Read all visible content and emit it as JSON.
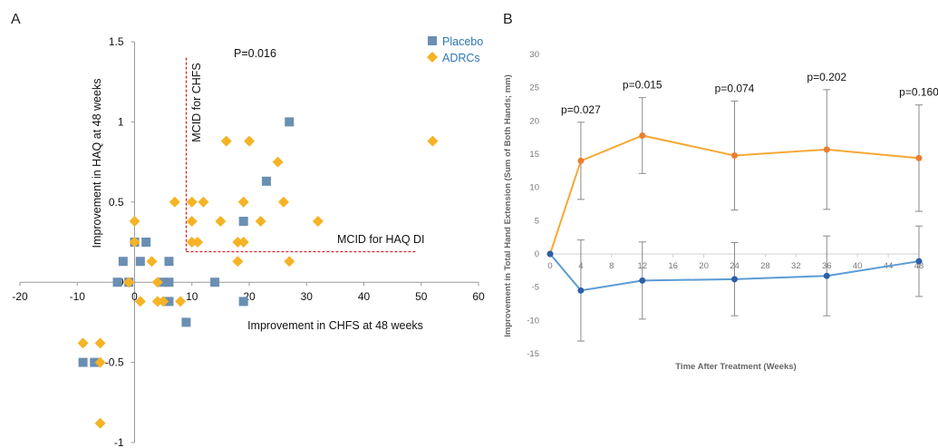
{
  "panels": {
    "a": "A",
    "b": "B"
  },
  "colors": {
    "placebo": "#6a8fb3",
    "adrc": "#f5b325",
    "orange_line": "#f4a935",
    "orange_marker": "#ed7d31",
    "blue_line": "#5b9bd5",
    "blue_marker": "#2e5fa8",
    "mcid": "#cc0000"
  },
  "chart_data": [
    {
      "type": "scatter",
      "title": "",
      "xlabel": "Improvement in CHFS at 48 weeks",
      "ylabel": "Improvement in HAQ at 48 weeks",
      "xlim": [
        -20,
        60
      ],
      "ylim": [
        -1,
        1.5
      ],
      "x_ticks": [
        "-20",
        "-10",
        "0",
        "10",
        "20",
        "30",
        "40",
        "50",
        "60"
      ],
      "y_ticks": [
        "1.5",
        "1",
        "0.5",
        "0",
        "-0.5",
        "-1"
      ],
      "annotation": "P=0.016",
      "mcid_chfs_label": "MCID for CHFS",
      "mcid_haq_label": "MCID for HAQ DI",
      "mcid_chfs_value": 9,
      "mcid_haq_value": 0.19,
      "series": [
        {
          "name": "Placebo",
          "marker": "square",
          "points": [
            [
              27,
              1
            ],
            [
              23,
              0.63
            ],
            [
              19,
              0.38
            ],
            [
              0,
              0.25
            ],
            [
              2,
              0.25
            ],
            [
              -2,
              0.13
            ],
            [
              1,
              0.13
            ],
            [
              6,
              0.13
            ],
            [
              -3,
              0
            ],
            [
              -1,
              0
            ],
            [
              5,
              0
            ],
            [
              6,
              0
            ],
            [
              14,
              0
            ],
            [
              6,
              -0.12
            ],
            [
              9,
              -0.25
            ],
            [
              19,
              -0.12
            ],
            [
              -9,
              -0.5
            ],
            [
              -7,
              -0.5
            ]
          ]
        },
        {
          "name": "ADRCs",
          "marker": "diamond",
          "points": [
            [
              52,
              0.88
            ],
            [
              16,
              0.88
            ],
            [
              20,
              0.88
            ],
            [
              25,
              0.75
            ],
            [
              0,
              0.38
            ],
            [
              10,
              0.38
            ],
            [
              15,
              0.38
            ],
            [
              22,
              0.38
            ],
            [
              32,
              0.38
            ],
            [
              7,
              0.5
            ],
            [
              10,
              0.5
            ],
            [
              12,
              0.5
            ],
            [
              19,
              0.5
            ],
            [
              26,
              0.5
            ],
            [
              0,
              0.25
            ],
            [
              10,
              0.25
            ],
            [
              11,
              0.25
            ],
            [
              18,
              0.25
            ],
            [
              19,
              0.25
            ],
            [
              3,
              0.13
            ],
            [
              18,
              0.13
            ],
            [
              27,
              0.13
            ],
            [
              4,
              0
            ],
            [
              -1,
              0
            ],
            [
              1,
              -0.12
            ],
            [
              4,
              -0.12
            ],
            [
              5,
              -0.12
            ],
            [
              8,
              -0.12
            ],
            [
              -9,
              -0.38
            ],
            [
              -6,
              -0.38
            ],
            [
              -6,
              -0.5
            ],
            [
              -6,
              -0.88
            ]
          ]
        }
      ]
    },
    {
      "type": "line",
      "title": "",
      "xlabel": "Time After Treatment (Weeks)",
      "ylabel": "Improvement in Total Hand Extension (Sum of Both Hands; mm)",
      "xlim": [
        0,
        48
      ],
      "ylim": [
        -15,
        30
      ],
      "x_ticks": [
        "0",
        "4",
        "8",
        "12",
        "16",
        "20",
        "24",
        "28",
        "32",
        "36",
        "40",
        "44",
        "48"
      ],
      "y_ticks": [
        "30",
        "25",
        "20",
        "15",
        "10",
        "5",
        "0",
        "-5",
        "-10",
        "-15"
      ],
      "x": [
        0,
        4,
        12,
        24,
        36,
        48
      ],
      "series": [
        {
          "values": [
            0,
            14,
            17.8,
            14.8,
            15.7,
            14.4
          ],
          "error": [
            0,
            5.8,
            5.7,
            8.2,
            9,
            8
          ]
        },
        {
          "values": [
            0,
            -5.5,
            -4,
            -3.8,
            -3.3,
            -1.1
          ],
          "error": [
            0,
            7.6,
            5.8,
            5.5,
            6,
            5.3
          ]
        }
      ],
      "p_values": [
        {
          "x": 4,
          "label": "p=0.027"
        },
        {
          "x": 12,
          "label": "p=0.015"
        },
        {
          "x": 24,
          "label": "p=0.074"
        },
        {
          "x": 36,
          "label": "p=0.202"
        },
        {
          "x": 48,
          "label": "p=0.160"
        }
      ]
    }
  ]
}
